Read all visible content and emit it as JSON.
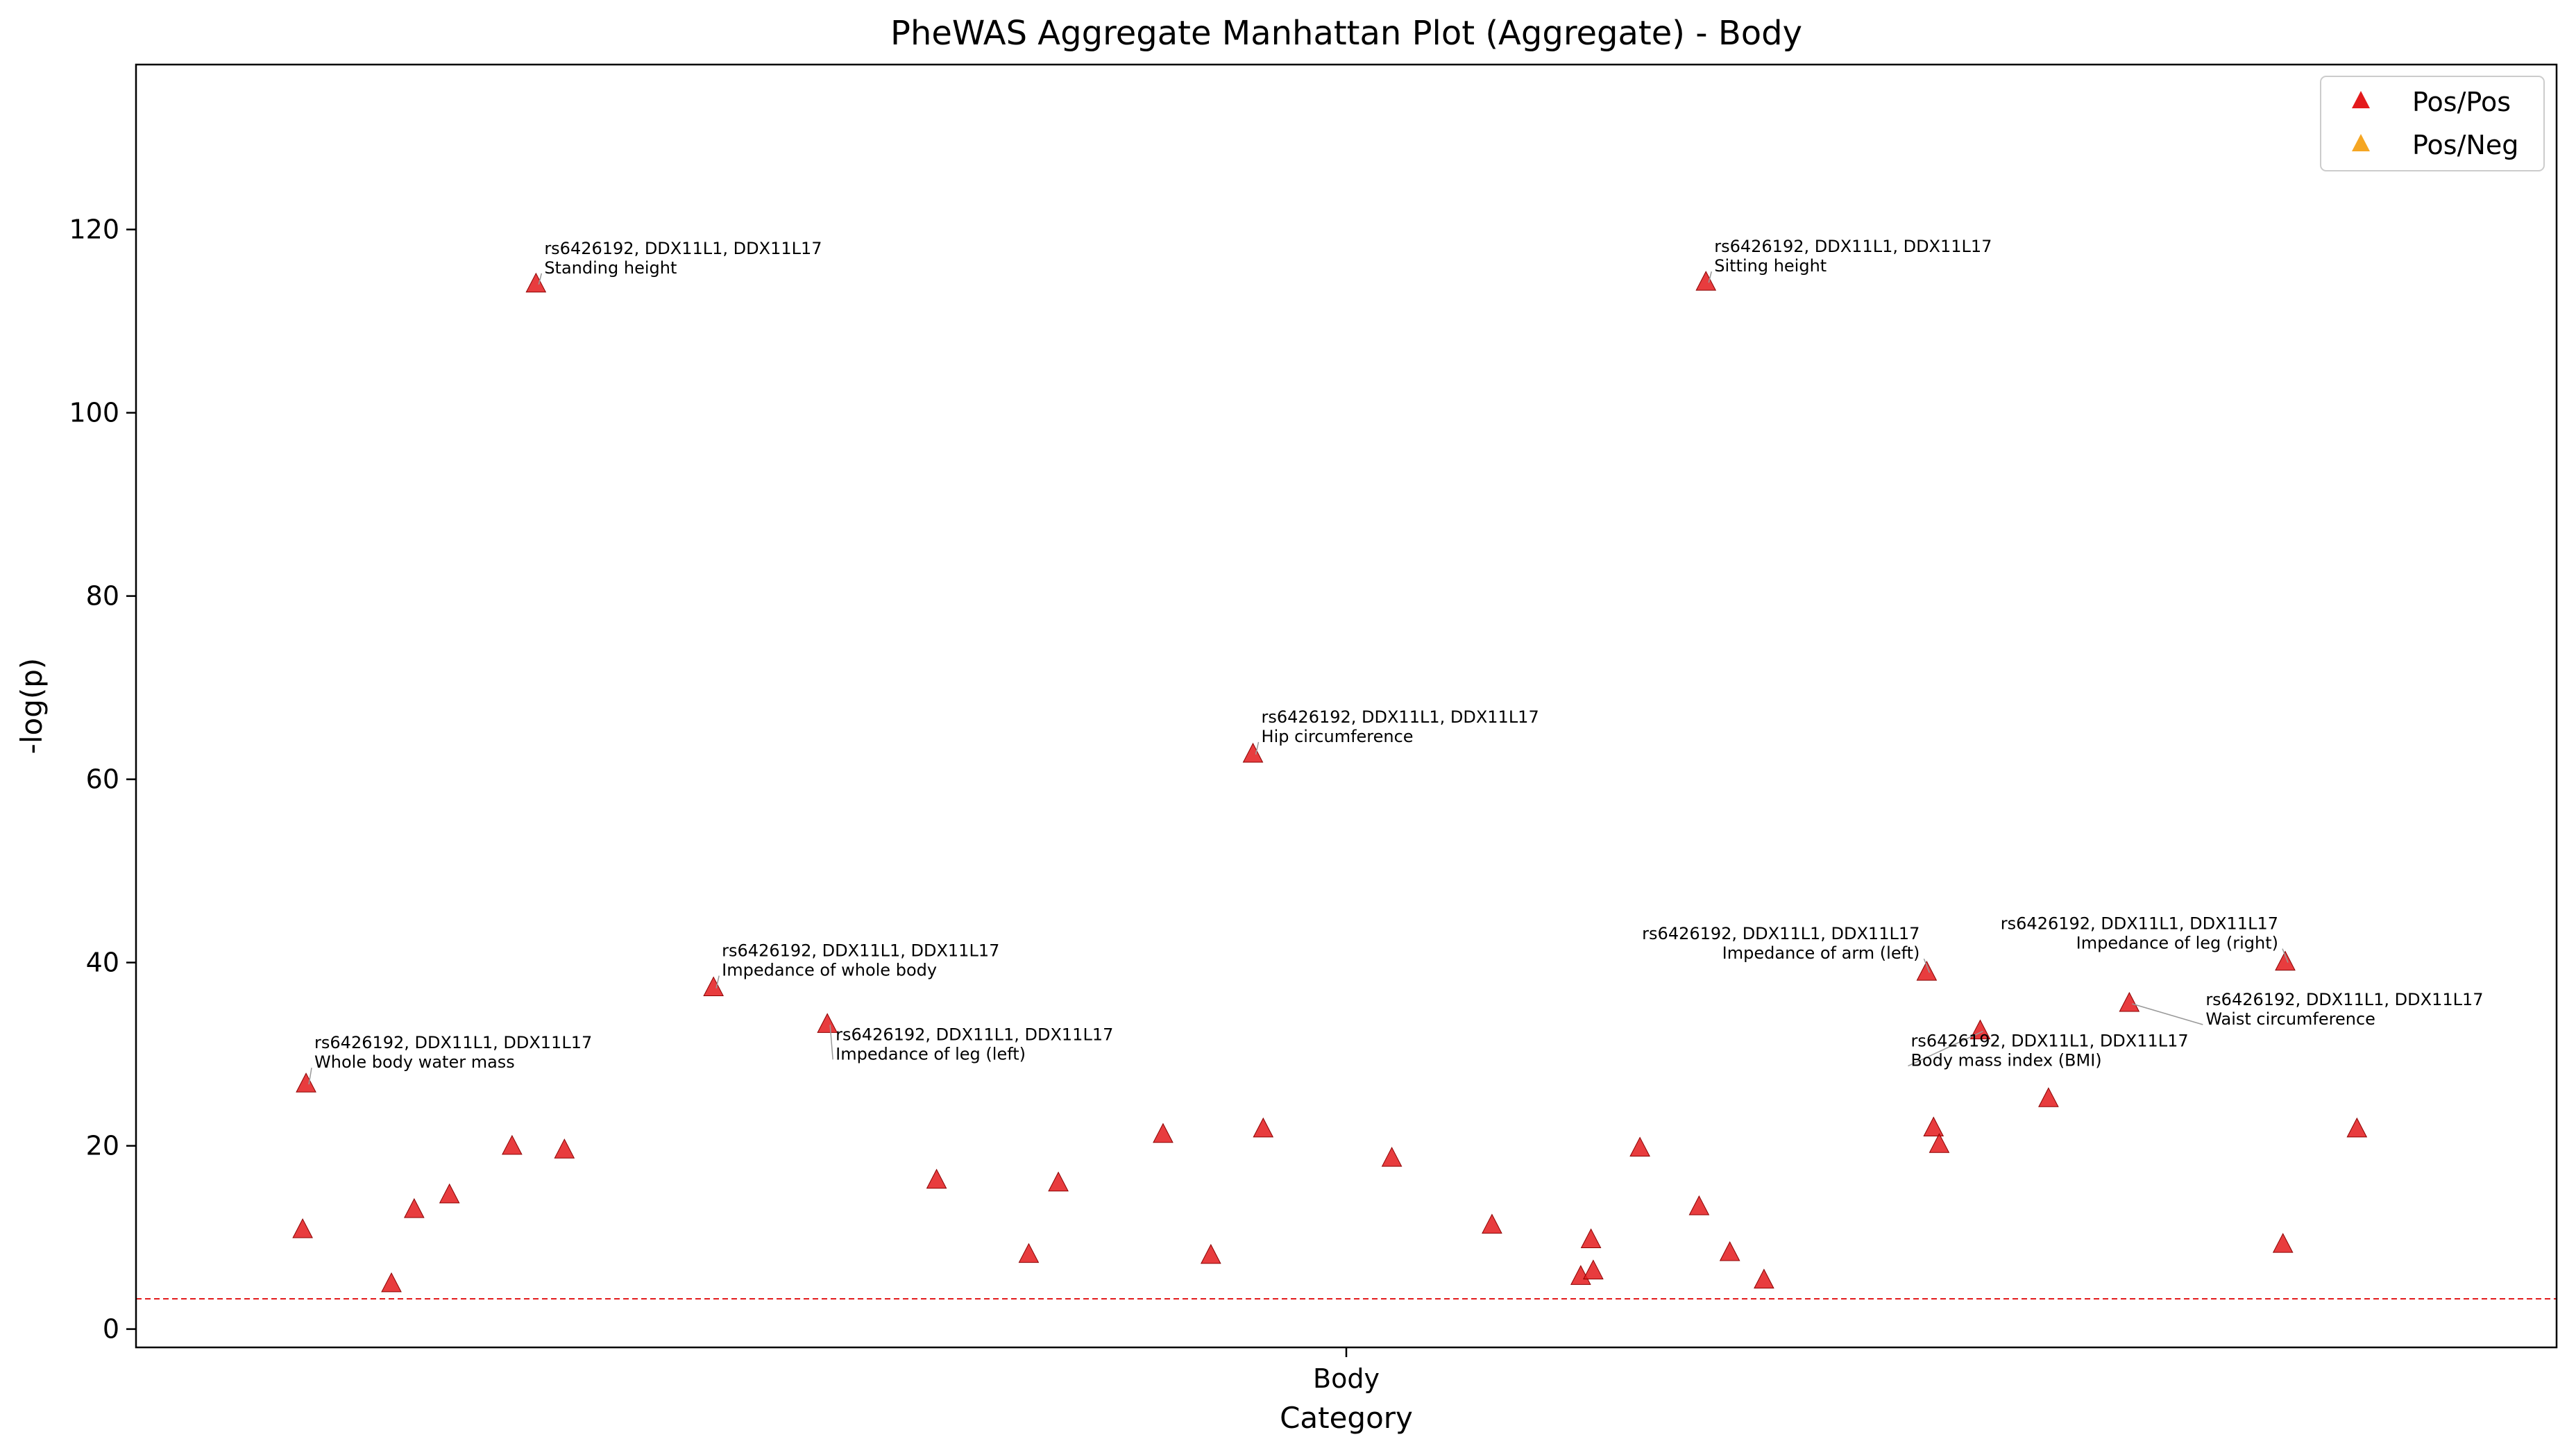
{
  "chart_data": {
    "type": "scatter",
    "title": "PheWAS Aggregate Manhattan Plot (Aggregate) - Body",
    "xlabel": "Category",
    "ylabel": "-log(p)",
    "x_categories": [
      "Body"
    ],
    "ylim": [
      -2,
      138
    ],
    "y_ticks": [
      0,
      20,
      40,
      60,
      80,
      100,
      120
    ],
    "threshold": 3.3,
    "threshold_color": "#e31a1c",
    "grid": false,
    "legend": {
      "placement": "top-right",
      "entries": [
        {
          "label": "Pos/Pos",
          "color": "#e41a1c"
        },
        {
          "label": "Pos/Neg",
          "color": "#f5a623"
        }
      ]
    },
    "series": [
      {
        "name": "Pos/Pos",
        "color": "#e41a1c",
        "points": [
          {
            "x": -0.917,
            "y": 10.8
          },
          {
            "x": -0.914,
            "y": 26.7,
            "gene": "rs6426192, DDX11L1, DDX11L17",
            "trait": "Whole body water mass"
          },
          {
            "x": -0.839,
            "y": 4.9
          },
          {
            "x": -0.819,
            "y": 13.0
          },
          {
            "x": -0.788,
            "y": 14.6
          },
          {
            "x": -0.733,
            "y": 19.9
          },
          {
            "x": -0.712,
            "y": 114.0,
            "gene": "rs6426192, DDX11L1, DDX11L17",
            "trait": "Standing height"
          },
          {
            "x": -0.687,
            "y": 19.5
          },
          {
            "x": -0.556,
            "y": 37.2,
            "gene": "rs6426192, DDX11L1, DDX11L17",
            "trait": "Impedance of whole body"
          },
          {
            "x": -0.456,
            "y": 33.2,
            "gene": "rs6426192, DDX11L1, DDX11L17",
            "trait": "Impedance of leg (left)"
          },
          {
            "x": -0.36,
            "y": 16.2
          },
          {
            "x": -0.279,
            "y": 8.1
          },
          {
            "x": -0.253,
            "y": 15.9
          },
          {
            "x": -0.161,
            "y": 21.2
          },
          {
            "x": -0.119,
            "y": 8.0
          },
          {
            "x": -0.082,
            "y": 62.7,
            "gene": "rs6426192, DDX11L1, DDX11L17",
            "trait": "Hip circumference"
          },
          {
            "x": -0.073,
            "y": 21.8
          },
          {
            "x": 0.04,
            "y": 18.6
          },
          {
            "x": 0.128,
            "y": 11.3
          },
          {
            "x": 0.206,
            "y": 5.7
          },
          {
            "x": 0.215,
            "y": 9.7
          },
          {
            "x": 0.217,
            "y": 6.3
          },
          {
            "x": 0.258,
            "y": 19.7
          },
          {
            "x": 0.31,
            "y": 13.3
          },
          {
            "x": 0.316,
            "y": 114.2,
            "gene": "rs6426192, DDX11L1, DDX11L17",
            "trait": "Sitting height"
          },
          {
            "x": 0.337,
            "y": 8.3
          },
          {
            "x": 0.367,
            "y": 5.3
          },
          {
            "x": 0.51,
            "y": 38.9,
            "gene": "rs6426192, DDX11L1, DDX11L17",
            "trait": "Impedance of arm (left)"
          },
          {
            "x": 0.516,
            "y": 21.9
          },
          {
            "x": 0.521,
            "y": 20.1
          },
          {
            "x": 0.557,
            "y": 32.5,
            "gene": "rs6426192, DDX11L1, DDX11L17",
            "trait": "Body mass index (BMI)"
          },
          {
            "x": 0.617,
            "y": 25.1
          },
          {
            "x": 0.688,
            "y": 35.5,
            "gene": "rs6426192, DDX11L1, DDX11L17",
            "trait": "Waist circumference"
          },
          {
            "x": 0.823,
            "y": 9.2
          },
          {
            "x": 0.825,
            "y": 40.0,
            "gene": "rs6426192, DDX11L1, DDX11L17",
            "trait": "Impedance of leg (right)"
          },
          {
            "x": 0.888,
            "y": 21.8
          }
        ]
      },
      {
        "name": "Pos/Neg",
        "color": "#f5a623",
        "points": []
      }
    ]
  }
}
